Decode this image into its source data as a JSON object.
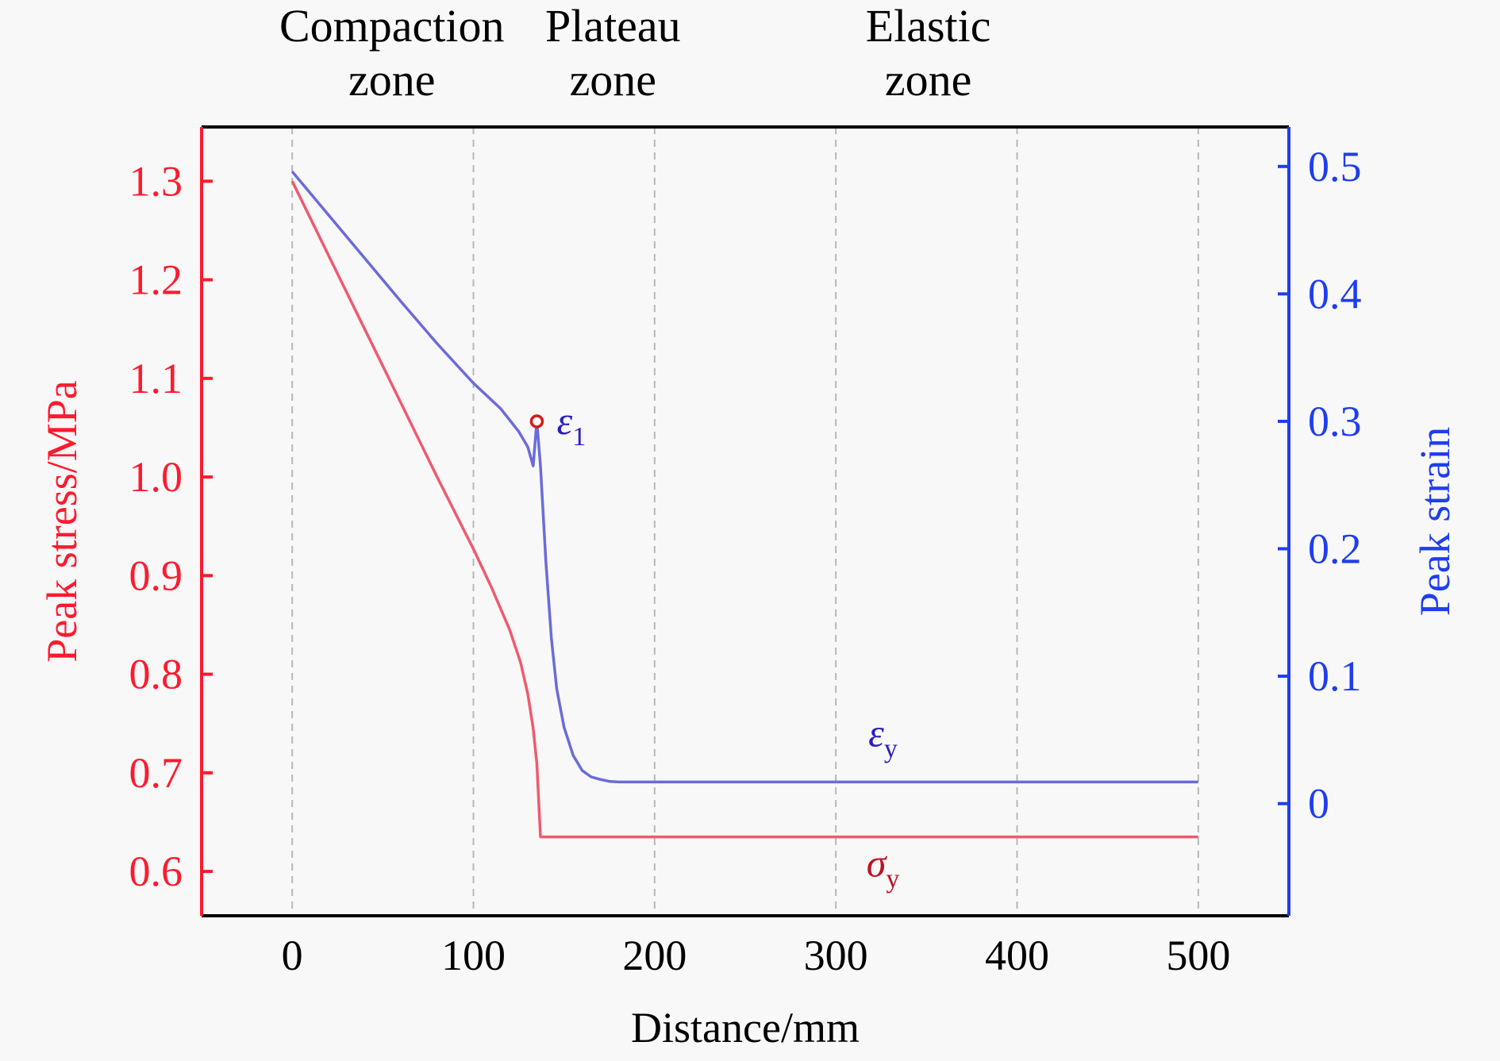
{
  "colors": {
    "stress": "#ff1a2e",
    "strain": "#1f3df0",
    "stress_curve": "#ef5a6e",
    "strain_curve": "#6b6bdc",
    "marker": "#d81818",
    "frame": "#000000",
    "grid": "#b8b8b8",
    "background": "#f8f8f8"
  },
  "zones": [
    {
      "line1": "Compaction",
      "line2": "zone",
      "x": 55
    },
    {
      "line1": "Plateau",
      "line2": "zone",
      "x": 177
    },
    {
      "line1": "Elastic",
      "line2": "zone",
      "x": 351
    }
  ],
  "chart_data": {
    "type": "line",
    "xlabel": "Distance/mm",
    "ylabel_left": "Peak stress/MPa",
    "ylabel_right": "Peak strain",
    "xlim": [
      -50,
      550
    ],
    "ylim_left": [
      0.555,
      1.355
    ],
    "ylim_right": [
      -0.088,
      0.531
    ],
    "x_ticks": [
      0,
      100,
      200,
      300,
      400,
      500
    ],
    "y_ticks_left": [
      0.6,
      0.7,
      0.8,
      0.9,
      1.0,
      1.1,
      1.2,
      1.3
    ],
    "y_ticks_right": [
      0,
      0.1,
      0.2,
      0.3,
      0.4,
      0.5
    ],
    "y_tick_labels_left": [
      "0.6",
      "0.7",
      "0.8",
      "0.9",
      "1.0",
      "1.1",
      "1.2",
      "1.3"
    ],
    "y_tick_labels_right": [
      "0",
      "0.1",
      "0.2",
      "0.3",
      "0.4",
      "0.5"
    ],
    "grid": "vertical-dashed",
    "series": [
      {
        "name": "σ",
        "subscript": "y",
        "axis": "left",
        "label_at": [
          326,
          0.595
        ],
        "x": [
          0,
          20,
          40,
          60,
          80,
          100,
          110,
          120,
          126,
          130,
          133,
          135,
          137,
          140,
          200,
          300,
          400,
          500
        ],
        "y": [
          1.3,
          1.225,
          1.15,
          1.075,
          1.0,
          0.927,
          0.888,
          0.845,
          0.812,
          0.78,
          0.745,
          0.71,
          0.635,
          0.635,
          0.635,
          0.635,
          0.635,
          0.635
        ]
      },
      {
        "name": "ε",
        "subscript": "y",
        "axis": "right",
        "label_at": [
          326,
          0.045
        ],
        "x": [
          0,
          20,
          40,
          60,
          80,
          100,
          115,
          125,
          130,
          133,
          135,
          137,
          140,
          143,
          146,
          150,
          155,
          160,
          165,
          170,
          175,
          180,
          200,
          300,
          400,
          500
        ],
        "y": [
          0.496,
          0.462,
          0.428,
          0.394,
          0.361,
          0.33,
          0.31,
          0.292,
          0.28,
          0.265,
          0.3,
          0.265,
          0.19,
          0.13,
          0.09,
          0.06,
          0.038,
          0.026,
          0.021,
          0.019,
          0.0175,
          0.017,
          0.017,
          0.017,
          0.017,
          0.017
        ]
      }
    ],
    "annotations": [
      {
        "name": "ε",
        "subscript": "1",
        "x": 135,
        "y_right": 0.3,
        "label_offset_data": [
          11,
          0
        ]
      }
    ]
  }
}
